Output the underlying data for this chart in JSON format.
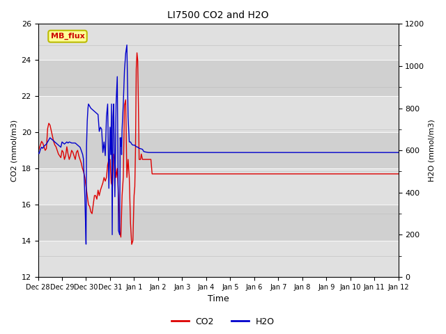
{
  "title": "LI7500 CO2 and H2O",
  "ylabel_left": "CO2 (mmol/m3)",
  "ylabel_right": "H2O (mmol/m3)",
  "xlabel": "Time",
  "ylim_left": [
    12,
    26
  ],
  "ylim_right": [
    0,
    1200
  ],
  "background_color": "#ffffff",
  "plot_bg_color": "#e8e8e8",
  "band_color_light": "#dcdcdc",
  "band_color_dark": "#c8c8c8",
  "label_box_text": "MB_flux",
  "label_box_facecolor": "#ffff99",
  "label_box_edgecolor": "#bbbb00",
  "label_box_textcolor": "#cc0000",
  "co2_color": "#dd0000",
  "h2o_color": "#0000cc",
  "legend_co2": "CO2",
  "legend_h2o": "H2O",
  "x_tick_labels": [
    "Dec 28",
    "Dec 29",
    "Dec 30",
    "Dec 31",
    "Jan 1",
    "Jan 2",
    "Jan 3",
    "Jan 4",
    "Jan 5",
    "Jan 6",
    "Jan 7",
    "Jan 8",
    "Jan 9",
    "Jan 10",
    "Jan 11",
    "Jan 12"
  ],
  "x_tick_positions": [
    0,
    1,
    2,
    3,
    4,
    5,
    6,
    7,
    8,
    9,
    10,
    11,
    12,
    13,
    14,
    15
  ],
  "co2_x": [
    0.0,
    0.05,
    0.1,
    0.15,
    0.2,
    0.25,
    0.3,
    0.35,
    0.4,
    0.45,
    0.5,
    0.55,
    0.6,
    0.65,
    0.7,
    0.75,
    0.8,
    0.85,
    0.9,
    0.95,
    1.0,
    1.05,
    1.1,
    1.15,
    1.2,
    1.25,
    1.3,
    1.35,
    1.4,
    1.45,
    1.5,
    1.55,
    1.6,
    1.65,
    1.7,
    1.75,
    1.8,
    1.85,
    1.9,
    1.95,
    2.0,
    2.05,
    2.1,
    2.15,
    2.2,
    2.25,
    2.3,
    2.35,
    2.4,
    2.45,
    2.5,
    2.55,
    2.6,
    2.65,
    2.7,
    2.75,
    2.8,
    2.85,
    2.9,
    2.95,
    3.0,
    3.05,
    3.1,
    3.15,
    3.2,
    3.25,
    3.3,
    3.35,
    3.4,
    3.45,
    3.5,
    3.55,
    3.6,
    3.65,
    3.7,
    3.75,
    3.8,
    3.85,
    3.9,
    3.95,
    4.0,
    4.03,
    4.06,
    4.09,
    4.12,
    4.15,
    4.18,
    4.21,
    4.24,
    4.27,
    4.3,
    4.35,
    4.4,
    4.45,
    4.5,
    4.55,
    4.6,
    4.65,
    4.7,
    4.75,
    4.8,
    4.85,
    4.9,
    4.95,
    5.0,
    15.0
  ],
  "co2_y": [
    18.9,
    19.1,
    19.3,
    19.5,
    19.4,
    19.2,
    19.0,
    19.1,
    20.2,
    20.5,
    20.4,
    20.1,
    19.8,
    19.5,
    19.3,
    19.2,
    19.0,
    18.8,
    18.7,
    18.6,
    19.0,
    18.9,
    18.5,
    18.7,
    19.2,
    18.8,
    18.5,
    18.7,
    19.0,
    18.9,
    18.7,
    18.5,
    18.9,
    19.0,
    18.7,
    18.5,
    18.3,
    18.0,
    17.8,
    17.5,
    17.0,
    16.5,
    16.0,
    15.9,
    15.6,
    15.5,
    16.0,
    16.5,
    16.5,
    16.3,
    16.8,
    16.5,
    16.8,
    17.0,
    17.2,
    17.5,
    17.3,
    17.5,
    18.2,
    18.5,
    18.5,
    17.2,
    17.0,
    18.8,
    18.5,
    17.5,
    18.0,
    16.5,
    14.5,
    14.2,
    16.5,
    17.5,
    21.5,
    21.8,
    17.5,
    18.5,
    17.5,
    15.0,
    13.8,
    14.0,
    16.5,
    17.0,
    19.2,
    23.5,
    24.4,
    24.0,
    21.5,
    18.5,
    18.5,
    18.5,
    18.8,
    18.5,
    18.5,
    18.5,
    18.5,
    18.5,
    18.5,
    18.5,
    18.5,
    17.7,
    17.7,
    17.7,
    17.7,
    17.7,
    17.7,
    17.7
  ],
  "h2o_x": [
    0.0,
    0.05,
    0.1,
    0.15,
    0.2,
    0.25,
    0.3,
    0.35,
    0.4,
    0.45,
    0.5,
    0.55,
    0.6,
    0.65,
    0.7,
    0.75,
    0.8,
    0.85,
    0.9,
    0.95,
    1.0,
    1.05,
    1.1,
    1.15,
    1.2,
    1.25,
    1.3,
    1.35,
    1.4,
    1.45,
    1.5,
    1.55,
    1.6,
    1.65,
    1.7,
    1.75,
    1.8,
    1.83,
    1.86,
    1.89,
    1.92,
    1.95,
    1.98,
    2.0,
    2.02,
    2.05,
    2.08,
    2.1,
    2.15,
    2.2,
    2.25,
    2.3,
    2.35,
    2.4,
    2.45,
    2.5,
    2.55,
    2.6,
    2.65,
    2.7,
    2.75,
    2.8,
    2.85,
    2.9,
    2.95,
    3.0,
    3.03,
    3.06,
    3.09,
    3.12,
    3.15,
    3.2,
    3.25,
    3.3,
    3.35,
    3.4,
    3.42,
    3.44,
    3.46,
    3.48,
    3.5,
    3.55,
    3.6,
    3.65,
    3.7,
    3.75,
    3.8,
    3.85,
    3.9,
    3.95,
    4.0,
    4.03,
    4.06,
    4.09,
    4.12,
    4.15,
    4.18,
    4.21,
    4.24,
    4.27,
    4.3,
    4.35,
    4.4,
    4.45,
    4.5,
    4.55,
    4.6,
    4.65,
    4.7,
    4.8,
    4.85,
    4.9,
    5.0,
    15.0
  ],
  "h2o_y": [
    590,
    585,
    605,
    615,
    610,
    620,
    625,
    630,
    640,
    650,
    660,
    655,
    650,
    645,
    640,
    635,
    630,
    625,
    620,
    615,
    640,
    635,
    630,
    635,
    640,
    635,
    640,
    638,
    635,
    635,
    635,
    635,
    630,
    625,
    620,
    615,
    600,
    590,
    580,
    560,
    480,
    380,
    250,
    155,
    620,
    740,
    800,
    820,
    810,
    800,
    795,
    790,
    785,
    780,
    775,
    770,
    690,
    710,
    700,
    590,
    640,
    575,
    760,
    820,
    420,
    710,
    580,
    820,
    200,
    760,
    820,
    380,
    820,
    950,
    220,
    200,
    660,
    620,
    660,
    580,
    700,
    820,
    980,
    1060,
    1100,
    760,
    640,
    640,
    630,
    625,
    625,
    625,
    620,
    618,
    616,
    616,
    612,
    610,
    609,
    608,
    607,
    605,
    595,
    593,
    592,
    591,
    590,
    590,
    590,
    590,
    590,
    590,
    590,
    590
  ]
}
